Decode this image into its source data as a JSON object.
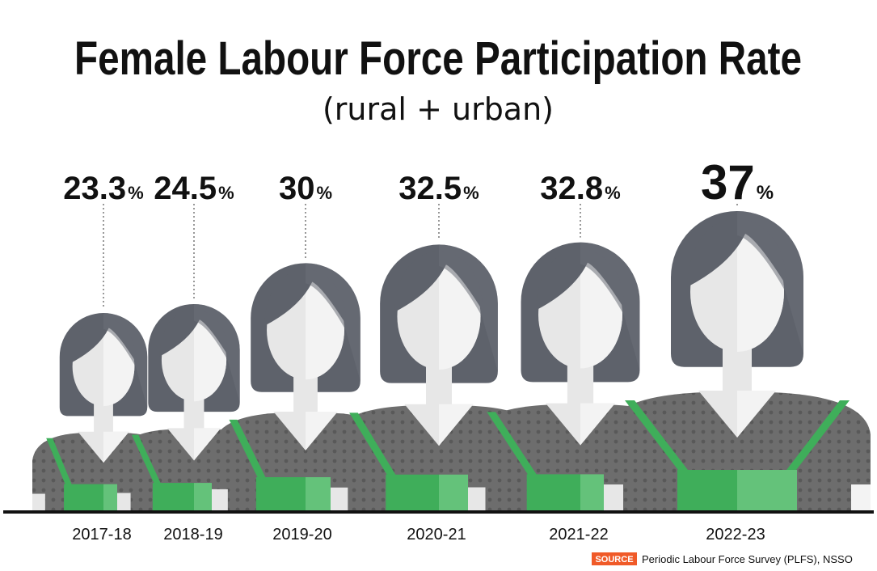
{
  "colors": {
    "hair": "#5e626b",
    "hair_shade": "#6c7079",
    "skin": "#e7e7e7",
    "skin_shade": "#f3f3f3",
    "shirt": "#6d6d6d",
    "shirt_dot": "#5a5a5a",
    "apron": "#3fae5a",
    "apron_light": "#64c27a",
    "baseline": "#111111",
    "source_badge": "#f05a28"
  },
  "chart_data": {
    "type": "bar",
    "title": "Female Labour Force Participation Rate",
    "subtitle": "(rural + urban)",
    "categories": [
      "2017-18",
      "2018-19",
      "2019-20",
      "2020-21",
      "2021-22",
      "2022-23"
    ],
    "values": [
      23.3,
      24.5,
      30,
      32.5,
      32.8,
      37
    ],
    "value_labels": [
      "23.3",
      "24.5",
      "30",
      "32.5",
      "32.8",
      "37"
    ],
    "unit": "%",
    "xlabel": "",
    "ylabel": "",
    "grid": false,
    "legend": "none",
    "mark": "woman-figure-icon"
  },
  "source": {
    "label": "SOURCE",
    "text": "Periodic Labour Force Survey (PLFS), NSSO"
  }
}
